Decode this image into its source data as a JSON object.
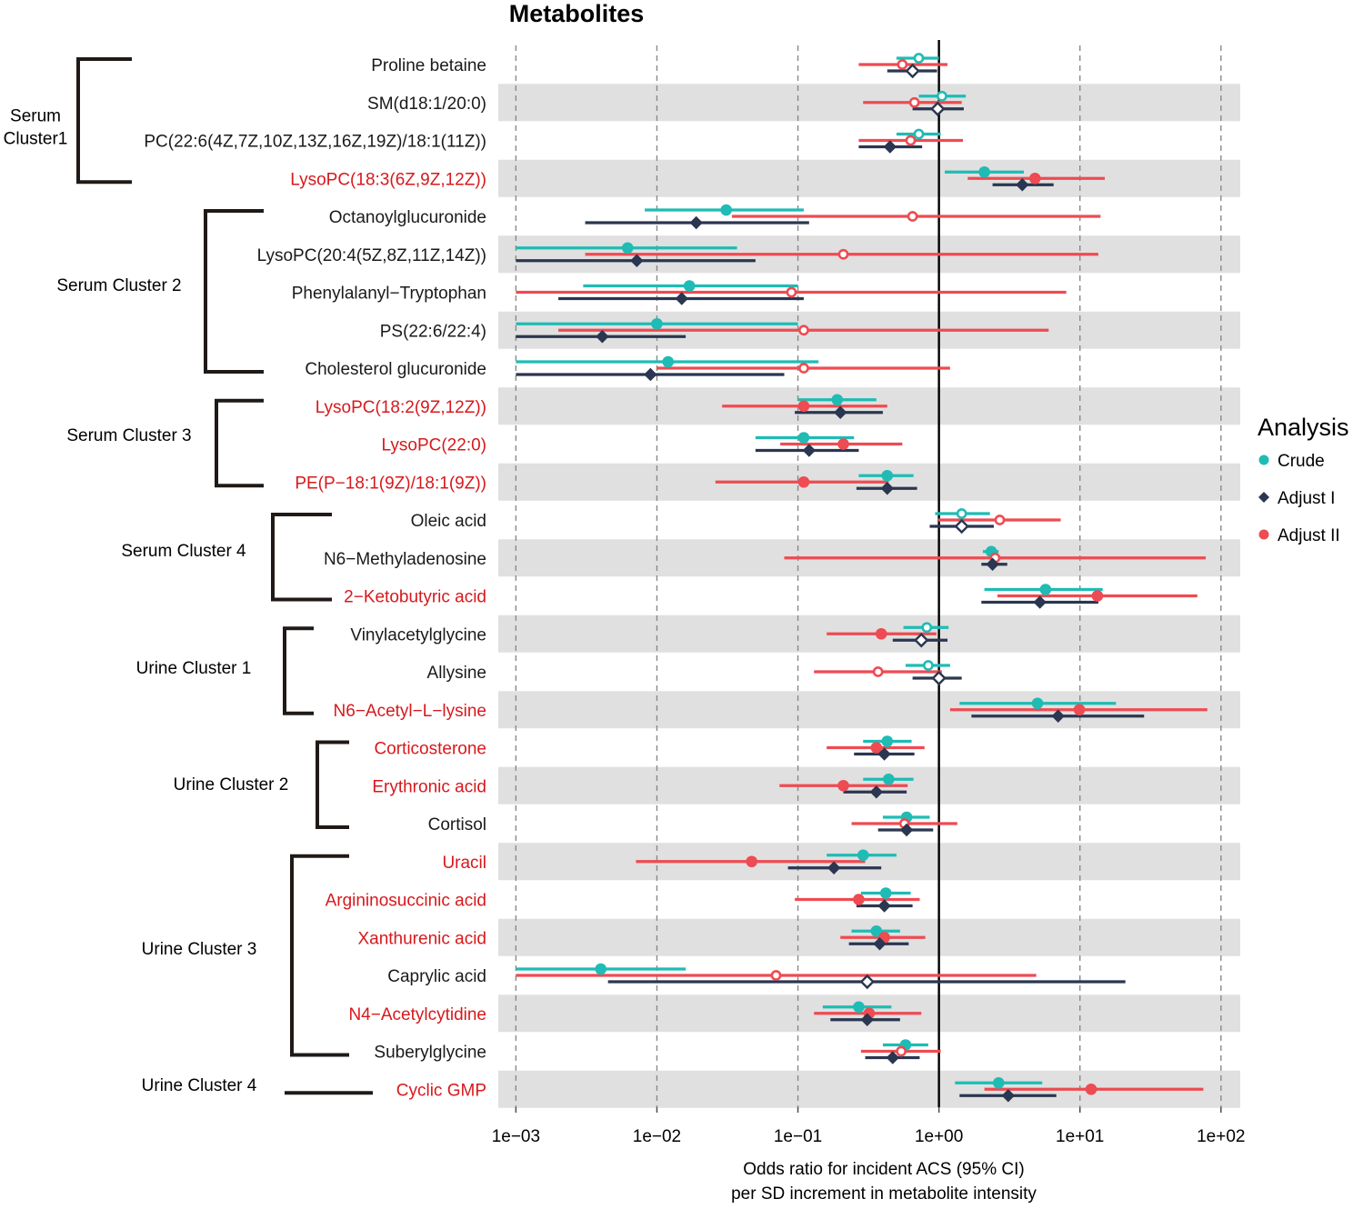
{
  "chart_data": {
    "type": "forest",
    "title": "Metabolites",
    "xscale": "log10",
    "xlim": [
      0.00075,
      137
    ],
    "xticks": [
      0.001,
      0.01,
      0.1,
      1,
      10,
      100
    ],
    "xtick_labels": [
      "1e−03",
      "1e−02",
      "1e−01",
      "1e+00",
      "1e+01",
      "1e+02"
    ],
    "xlabel_lines": [
      "Odds ratio for incident ACS (95% CI)",
      "per SD increment in metabolite intensity"
    ],
    "reference_line": 1,
    "legend": {
      "title": "Analysis",
      "placement": "right",
      "entries": [
        {
          "name": "Crude",
          "color": "#1EBCB4",
          "marker": "circle"
        },
        {
          "name": "Adjust I",
          "color": "#2B3650",
          "marker": "diamond"
        },
        {
          "name": "Adjust II",
          "color": "#EE4B52",
          "marker": "circle"
        }
      ]
    },
    "highlight_color": "#D7191C",
    "clusters": [
      {
        "label_lines": [
          "Serum",
          "Cluster1"
        ],
        "first_row": 0,
        "last_row": 3
      },
      {
        "label_lines": [
          "Serum Cluster 2"
        ],
        "first_row": 4,
        "last_row": 8
      },
      {
        "label_lines": [
          "Serum Cluster 3"
        ],
        "first_row": 9,
        "last_row": 11
      },
      {
        "label_lines": [
          "Serum Cluster 4"
        ],
        "first_row": 12,
        "last_row": 14
      },
      {
        "label_lines": [
          "Urine Cluster 1"
        ],
        "first_row": 15,
        "last_row": 17
      },
      {
        "label_lines": [
          "Urine Cluster 2"
        ],
        "first_row": 18,
        "last_row": 20
      },
      {
        "label_lines": [
          "Urine Cluster 3"
        ],
        "first_row": 21,
        "last_row": 26
      },
      {
        "label_lines": [
          "Urine Cluster 4"
        ],
        "first_row": 27,
        "last_row": 27
      }
    ],
    "rows": [
      {
        "name": "Proline betaine",
        "highlight": false,
        "crude": {
          "or": 0.72,
          "lo": 0.5,
          "hi": 1.0,
          "sig": false
        },
        "adj1": {
          "or": 0.65,
          "lo": 0.43,
          "hi": 0.97,
          "sig": false
        },
        "adj2": {
          "or": 0.55,
          "lo": 0.27,
          "hi": 1.15,
          "sig": false
        }
      },
      {
        "name": "SM(d18:1/20:0)",
        "highlight": false,
        "crude": {
          "or": 1.05,
          "lo": 0.72,
          "hi": 1.55,
          "sig": false
        },
        "adj1": {
          "or": 0.98,
          "lo": 0.65,
          "hi": 1.5,
          "sig": false
        },
        "adj2": {
          "or": 0.67,
          "lo": 0.29,
          "hi": 1.45,
          "sig": false
        }
      },
      {
        "name": "PC(22:6(4Z,7Z,10Z,13Z,16Z,19Z)/18:1(11Z))",
        "highlight": false,
        "crude": {
          "or": 0.72,
          "lo": 0.5,
          "hi": 1.03,
          "sig": false
        },
        "adj1": {
          "or": 0.45,
          "lo": 0.27,
          "hi": 0.76,
          "sig": true
        },
        "adj2": {
          "or": 0.63,
          "lo": 0.27,
          "hi": 1.48,
          "sig": false
        }
      },
      {
        "name": "LysoPC(18:3(6Z,9Z,12Z))",
        "highlight": true,
        "crude": {
          "or": 2.1,
          "lo": 1.1,
          "hi": 4.0,
          "sig": true
        },
        "adj1": {
          "or": 3.9,
          "lo": 2.4,
          "hi": 6.5,
          "sig": true
        },
        "adj2": {
          "or": 4.8,
          "lo": 1.6,
          "hi": 15.0,
          "sig": true
        }
      },
      {
        "name": "Octanoylglucuronide",
        "highlight": false,
        "crude": {
          "or": 0.031,
          "lo": 0.0082,
          "hi": 0.11,
          "sig": true
        },
        "adj1": {
          "or": 0.019,
          "lo": 0.0031,
          "hi": 0.12,
          "sig": true
        },
        "adj2": {
          "or": 0.65,
          "lo": 0.034,
          "hi": 14.0,
          "sig": false
        }
      },
      {
        "name": "LysoPC(20:4(5Z,8Z,11Z,14Z))",
        "highlight": false,
        "crude": {
          "or": 0.0062,
          "lo": 0.001,
          "hi": 0.037,
          "sig": true
        },
        "adj1": {
          "or": 0.0072,
          "lo": 0.001,
          "hi": 0.05,
          "sig": true
        },
        "adj2": {
          "or": 0.21,
          "lo": 0.0031,
          "hi": 13.5,
          "sig": false
        }
      },
      {
        "name": "Phenylalanyl−Tryptophan",
        "highlight": false,
        "crude": {
          "or": 0.017,
          "lo": 0.003,
          "hi": 0.1,
          "sig": true
        },
        "adj1": {
          "or": 0.015,
          "lo": 0.002,
          "hi": 0.11,
          "sig": true
        },
        "adj2": {
          "or": 0.09,
          "lo": 0.001,
          "hi": 8.0,
          "sig": false
        }
      },
      {
        "name": "PS(22:6/22:4)",
        "highlight": false,
        "crude": {
          "or": 0.01,
          "lo": 0.001,
          "hi": 0.1,
          "sig": true
        },
        "adj1": {
          "or": 0.0041,
          "lo": 0.001,
          "hi": 0.016,
          "sig": true
        },
        "adj2": {
          "or": 0.11,
          "lo": 0.002,
          "hi": 6.0,
          "sig": false
        }
      },
      {
        "name": "Cholesterol glucuronide",
        "highlight": false,
        "crude": {
          "or": 0.012,
          "lo": 0.001,
          "hi": 0.14,
          "sig": true
        },
        "adj1": {
          "or": 0.009,
          "lo": 0.001,
          "hi": 0.08,
          "sig": true
        },
        "adj2": {
          "or": 0.11,
          "lo": 0.01,
          "hi": 1.2,
          "sig": false
        }
      },
      {
        "name": "LysoPC(18:2(9Z,12Z))",
        "highlight": true,
        "crude": {
          "or": 0.19,
          "lo": 0.1,
          "hi": 0.36,
          "sig": true
        },
        "adj1": {
          "or": 0.2,
          "lo": 0.095,
          "hi": 0.4,
          "sig": true
        },
        "adj2": {
          "or": 0.11,
          "lo": 0.029,
          "hi": 0.43,
          "sig": true
        }
      },
      {
        "name": "LysoPC(22:0)",
        "highlight": true,
        "crude": {
          "or": 0.11,
          "lo": 0.05,
          "hi": 0.25,
          "sig": true
        },
        "adj1": {
          "or": 0.12,
          "lo": 0.05,
          "hi": 0.27,
          "sig": true
        },
        "adj2": {
          "or": 0.21,
          "lo": 0.075,
          "hi": 0.55,
          "sig": true
        }
      },
      {
        "name": "PE(P−18:1(9Z)/18:1(9Z))",
        "highlight": true,
        "crude": {
          "or": 0.43,
          "lo": 0.27,
          "hi": 0.66,
          "sig": true
        },
        "adj1": {
          "or": 0.43,
          "lo": 0.26,
          "hi": 0.7,
          "sig": true
        },
        "adj2": {
          "or": 0.11,
          "lo": 0.026,
          "hi": 0.44,
          "sig": true
        }
      },
      {
        "name": "Oleic acid",
        "highlight": false,
        "crude": {
          "or": 1.45,
          "lo": 0.94,
          "hi": 2.3,
          "sig": false
        },
        "adj1": {
          "or": 1.45,
          "lo": 0.86,
          "hi": 2.45,
          "sig": false
        },
        "adj2": {
          "or": 2.7,
          "lo": 0.99,
          "hi": 7.3,
          "sig": false
        }
      },
      {
        "name": "N6−Methyladenosine",
        "highlight": false,
        "crude": {
          "or": 2.35,
          "lo": 2.05,
          "hi": 2.65,
          "sig": true
        },
        "adj1": {
          "or": 2.4,
          "lo": 2.0,
          "hi": 3.05,
          "sig": true
        },
        "adj2": {
          "or": 2.5,
          "lo": 0.08,
          "hi": 78.0,
          "sig": false
        }
      },
      {
        "name": "2−Ketobutyric acid",
        "highlight": true,
        "crude": {
          "or": 5.7,
          "lo": 2.1,
          "hi": 14.5,
          "sig": true
        },
        "adj1": {
          "or": 5.2,
          "lo": 2.0,
          "hi": 13.5,
          "sig": true
        },
        "adj2": {
          "or": 13.3,
          "lo": 2.6,
          "hi": 68.0,
          "sig": true
        }
      },
      {
        "name": "Vinylacetylglycine",
        "highlight": false,
        "crude": {
          "or": 0.82,
          "lo": 0.56,
          "hi": 1.17,
          "sig": false
        },
        "adj1": {
          "or": 0.75,
          "lo": 0.47,
          "hi": 1.15,
          "sig": false
        },
        "adj2": {
          "or": 0.39,
          "lo": 0.16,
          "hi": 0.96,
          "sig": true
        }
      },
      {
        "name": "Allysine",
        "highlight": false,
        "crude": {
          "or": 0.84,
          "lo": 0.58,
          "hi": 1.2,
          "sig": false
        },
        "adj1": {
          "or": 1.0,
          "lo": 0.65,
          "hi": 1.45,
          "sig": false
        },
        "adj2": {
          "or": 0.37,
          "lo": 0.13,
          "hi": 1.05,
          "sig": false
        }
      },
      {
        "name": "N6−Acetyl−L−lysine",
        "highlight": true,
        "crude": {
          "or": 5.0,
          "lo": 1.4,
          "hi": 18.0,
          "sig": true
        },
        "adj1": {
          "or": 7.0,
          "lo": 1.7,
          "hi": 28.5,
          "sig": true
        },
        "adj2": {
          "or": 9.9,
          "lo": 1.2,
          "hi": 80.0,
          "sig": true
        }
      },
      {
        "name": "Corticosterone",
        "highlight": true,
        "crude": {
          "or": 0.43,
          "lo": 0.29,
          "hi": 0.64,
          "sig": true
        },
        "adj1": {
          "or": 0.41,
          "lo": 0.25,
          "hi": 0.67,
          "sig": true
        },
        "adj2": {
          "or": 0.36,
          "lo": 0.16,
          "hi": 0.79,
          "sig": true
        }
      },
      {
        "name": "Erythronic acid",
        "highlight": true,
        "crude": {
          "or": 0.44,
          "lo": 0.29,
          "hi": 0.66,
          "sig": true
        },
        "adj1": {
          "or": 0.36,
          "lo": 0.21,
          "hi": 0.59,
          "sig": true
        },
        "adj2": {
          "or": 0.21,
          "lo": 0.074,
          "hi": 0.6,
          "sig": true
        }
      },
      {
        "name": "Cortisol",
        "highlight": false,
        "crude": {
          "or": 0.59,
          "lo": 0.4,
          "hi": 0.86,
          "sig": true
        },
        "adj1": {
          "or": 0.59,
          "lo": 0.37,
          "hi": 0.91,
          "sig": true
        },
        "adj2": {
          "or": 0.57,
          "lo": 0.24,
          "hi": 1.35,
          "sig": false
        }
      },
      {
        "name": "Uracil",
        "highlight": true,
        "crude": {
          "or": 0.29,
          "lo": 0.16,
          "hi": 0.5,
          "sig": true
        },
        "adj1": {
          "or": 0.18,
          "lo": 0.085,
          "hi": 0.39,
          "sig": true
        },
        "adj2": {
          "or": 0.047,
          "lo": 0.0071,
          "hi": 0.3,
          "sig": true
        }
      },
      {
        "name": "Argininosuccinic acid",
        "highlight": true,
        "crude": {
          "or": 0.42,
          "lo": 0.28,
          "hi": 0.63,
          "sig": true
        },
        "adj1": {
          "or": 0.41,
          "lo": 0.26,
          "hi": 0.65,
          "sig": true
        },
        "adj2": {
          "or": 0.27,
          "lo": 0.095,
          "hi": 0.73,
          "sig": true
        }
      },
      {
        "name": "Xanthurenic acid",
        "highlight": true,
        "crude": {
          "or": 0.36,
          "lo": 0.24,
          "hi": 0.53,
          "sig": true
        },
        "adj1": {
          "or": 0.38,
          "lo": 0.23,
          "hi": 0.61,
          "sig": true
        },
        "adj2": {
          "or": 0.41,
          "lo": 0.2,
          "hi": 0.8,
          "sig": true
        }
      },
      {
        "name": "Caprylic acid",
        "highlight": false,
        "crude": {
          "or": 0.004,
          "lo": 0.001,
          "hi": 0.016,
          "sig": true
        },
        "adj1": {
          "or": 0.31,
          "lo": 0.0045,
          "hi": 21.0,
          "sig": false
        },
        "adj2": {
          "or": 0.07,
          "lo": 0.001,
          "hi": 4.9,
          "sig": false
        }
      },
      {
        "name": "N4−Acetylcytidine",
        "highlight": true,
        "crude": {
          "or": 0.27,
          "lo": 0.15,
          "hi": 0.46,
          "sig": true
        },
        "adj1": {
          "or": 0.31,
          "lo": 0.17,
          "hi": 0.53,
          "sig": true
        },
        "adj2": {
          "or": 0.32,
          "lo": 0.13,
          "hi": 0.75,
          "sig": true
        }
      },
      {
        "name": "Suberylglycine",
        "highlight": false,
        "crude": {
          "or": 0.58,
          "lo": 0.4,
          "hi": 0.84,
          "sig": true
        },
        "adj1": {
          "or": 0.47,
          "lo": 0.3,
          "hi": 0.73,
          "sig": true
        },
        "adj2": {
          "or": 0.54,
          "lo": 0.28,
          "hi": 1.03,
          "sig": false
        }
      },
      {
        "name": "Cyclic GMP",
        "highlight": true,
        "crude": {
          "or": 2.65,
          "lo": 1.3,
          "hi": 5.4,
          "sig": true
        },
        "adj1": {
          "or": 3.1,
          "lo": 1.4,
          "hi": 6.8,
          "sig": true
        },
        "adj2": {
          "or": 12.0,
          "lo": 2.1,
          "hi": 75.0,
          "sig": true
        }
      }
    ]
  }
}
